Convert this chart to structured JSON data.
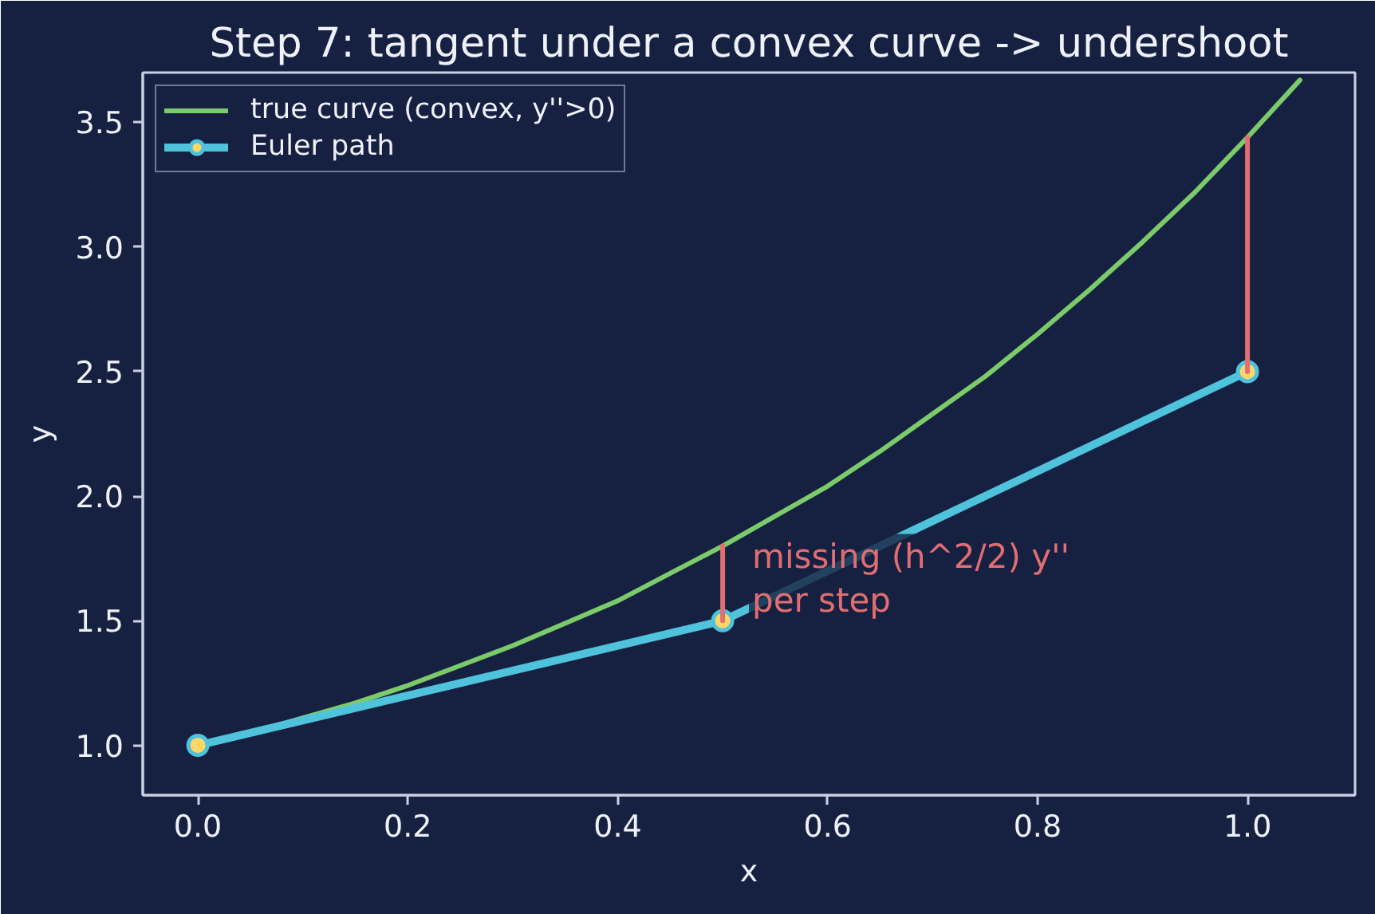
{
  "chart_data": {
    "type": "line",
    "title": "Step 7: tangent under a convex curve -> undershoot",
    "xlabel": "x",
    "ylabel": "y",
    "xlim": [
      -0.0525,
      1.1025
    ],
    "ylim": [
      0.8,
      3.7
    ],
    "xticks": [
      {
        "value": 0,
        "label": "0.0"
      },
      0.2,
      0.4,
      0.6,
      0.8,
      {
        "value": 1,
        "label": "1.0"
      }
    ],
    "yticks": [
      {
        "value": 1,
        "label": "1.0"
      },
      1.5,
      {
        "value": 2,
        "label": "2.0"
      },
      2.5,
      {
        "value": 3,
        "label": "3.0"
      },
      3.5
    ],
    "legend": "top left",
    "series": [
      {
        "name": "true curve (convex, y''>0)",
        "color": "#7ccb6b",
        "x": [
          0,
          0.05,
          0.1,
          0.15,
          0.2,
          0.25,
          0.3,
          0.35,
          0.4,
          0.45,
          0.5,
          0.55,
          0.6,
          0.65,
          0.7,
          0.75,
          0.8,
          0.85,
          0.9,
          0.95,
          1.0,
          1.05
        ],
        "values": [
          1.0,
          1.05,
          1.11,
          1.17,
          1.24,
          1.32,
          1.4,
          1.49,
          1.58,
          1.69,
          1.8,
          1.92,
          2.04,
          2.18,
          2.33,
          2.48,
          2.65,
          2.83,
          3.02,
          3.22,
          3.44,
          3.67
        ]
      },
      {
        "name": "Euler path",
        "color": "#4fc3dc",
        "colors": [
          "#ffd766",
          "#ffd766",
          "#ffd766"
        ],
        "marker": "circle",
        "x": [
          0,
          0.5,
          1.0
        ],
        "values": [
          1.0,
          1.5,
          2.5
        ]
      },
      {
        "color": "#e26d72",
        "x": [
          0.5,
          0.5
        ],
        "values": [
          1.5,
          1.8
        ]
      },
      {
        "color": "#e26d72",
        "x": [
          1.0,
          1.0
        ],
        "values": [
          2.5,
          3.44
        ]
      }
    ],
    "annotations": [
      "missing (h^2/2) y''\nper step"
    ]
  }
}
